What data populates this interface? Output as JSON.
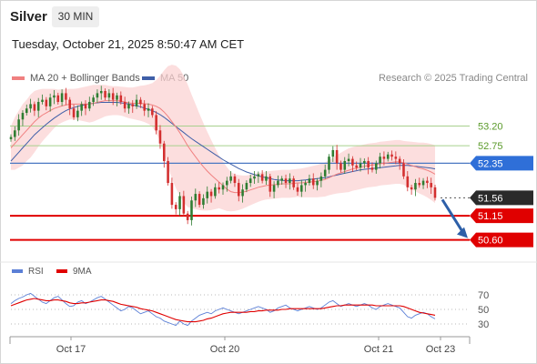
{
  "header": {
    "title": "Silver",
    "timeframe": "30 MIN",
    "timestamp": "Tuesday, October 21, 2025 8:50:47 AM CET"
  },
  "legend": {
    "ma20_label": "MA 20 + Bollinger Bands",
    "ma50_label": "MA 50",
    "research": "Research © 2025 Trading Central",
    "rsi_label": "RSI",
    "rsi_ma_label": "9MA"
  },
  "colors": {
    "bollinger_band": "#fbd3d3",
    "ma20": "#f08080",
    "ma50": "#3f5fa8",
    "candle_up": "#2e7d32",
    "candle_down": "#d32f2f",
    "target_line": "#e00000",
    "pivot_line": "#4a78c2",
    "resistance_line": "#a8d08d",
    "arrow": "#2d5fa8",
    "rsi": "#5b7fd6",
    "rsi_ma": "#e00000"
  },
  "chart_data": [
    {
      "type": "candlestick",
      "title": "Silver",
      "timeframe": "30 MIN",
      "x_labels": [
        "Oct 17",
        "Oct 20",
        "Oct 21",
        "Oct 23"
      ],
      "ylim": [
        50.3,
        54.0
      ],
      "overlays": [
        "MA 20 + Bollinger Bands",
        "MA 50"
      ],
      "levels": [
        {
          "value": 53.2,
          "label": "53.20",
          "kind": "resistance"
        },
        {
          "value": 52.75,
          "label": "52.75",
          "kind": "resistance"
        },
        {
          "value": 52.35,
          "label": "52.35",
          "kind": "pivot"
        },
        {
          "value": 51.56,
          "label": "51.56",
          "kind": "last_price"
        },
        {
          "value": 51.15,
          "label": "51.15",
          "kind": "target"
        },
        {
          "value": 50.6,
          "label": "50.60",
          "kind": "target"
        }
      ],
      "close_series": [
        52.95,
        53.1,
        53.35,
        53.5,
        53.6,
        53.7,
        53.55,
        53.75,
        53.8,
        53.65,
        53.85,
        53.9,
        53.75,
        53.95,
        53.8,
        53.6,
        53.4,
        53.55,
        53.7,
        53.6,
        53.75,
        53.85,
        53.95,
        54.0,
        53.85,
        53.95,
        53.8,
        53.9,
        53.75,
        53.6,
        53.7,
        53.65,
        53.8,
        53.7,
        53.55,
        53.6,
        53.45,
        53.1,
        52.8,
        52.4,
        51.9,
        51.4,
        51.3,
        51.6,
        51.2,
        51.05,
        51.5,
        51.65,
        51.4,
        51.55,
        51.7,
        51.6,
        51.8,
        51.75,
        51.85,
        51.95,
        52.05,
        51.9,
        51.6,
        51.75,
        51.9,
        52.0,
        52.05,
        52.1,
        51.95,
        52.05,
        51.7,
        51.85,
        51.95,
        52.0,
        51.9,
        52.0,
        51.8,
        51.7,
        51.85,
        51.9,
        52.0,
        51.85,
        51.95,
        52.05,
        52.2,
        52.5,
        52.65,
        52.35,
        52.2,
        52.4,
        52.45,
        52.3,
        52.25,
        52.35,
        52.4,
        52.25,
        52.2,
        52.35,
        52.5,
        52.45,
        52.55,
        52.5,
        52.45,
        52.35,
        52.05,
        51.8,
        51.75,
        51.9,
        51.85,
        51.95,
        51.9,
        51.8,
        51.56
      ],
      "ma20": [
        52.7,
        52.8,
        52.9,
        53.0,
        53.1,
        53.2,
        53.3,
        53.38,
        53.45,
        53.5,
        53.55,
        53.6,
        53.63,
        53.66,
        53.68,
        53.7,
        53.7,
        53.7,
        53.7,
        53.7,
        53.7,
        53.72,
        53.74,
        53.76,
        53.78,
        53.78,
        53.78,
        53.78,
        53.77,
        53.75,
        53.73,
        53.72,
        53.72,
        53.72,
        53.71,
        53.7,
        53.68,
        53.65,
        53.6,
        53.52,
        53.42,
        53.3,
        53.18,
        53.05,
        52.9,
        52.75,
        52.62,
        52.5,
        52.38,
        52.27,
        52.17,
        52.08,
        52.0,
        51.92,
        51.84,
        51.76,
        51.7,
        51.68,
        51.68,
        51.69,
        51.71,
        51.74,
        51.77,
        51.8,
        51.82,
        51.84,
        51.85,
        51.86,
        51.87,
        51.88,
        51.88,
        51.88,
        51.89,
        51.9,
        51.9,
        51.91,
        51.92,
        51.93,
        51.94,
        51.96,
        51.98,
        52.02,
        52.06,
        52.1,
        52.13,
        52.16,
        52.19,
        52.22,
        52.24,
        52.26,
        52.28,
        52.3,
        52.31,
        52.32,
        52.34,
        52.35,
        52.36,
        52.37,
        52.38,
        52.38,
        52.36,
        52.33,
        52.3,
        52.27,
        52.24,
        52.22,
        52.19,
        52.15,
        52.1
      ],
      "ma50": [
        52.4,
        52.5,
        52.6,
        52.7,
        52.8,
        52.9,
        53.0,
        53.08,
        53.16,
        53.24,
        53.31,
        53.38,
        53.44,
        53.5,
        53.55,
        53.59,
        53.62,
        53.65,
        53.67,
        53.69,
        53.71,
        53.72,
        53.73,
        53.74,
        53.74,
        53.74,
        53.74,
        53.74,
        53.73,
        53.72,
        53.7,
        53.68,
        53.66,
        53.64,
        53.61,
        53.58,
        53.55,
        53.51,
        53.46,
        53.4,
        53.33,
        53.26,
        53.19,
        53.12,
        53.05,
        52.98,
        52.91,
        52.85,
        52.79,
        52.73,
        52.67,
        52.61,
        52.55,
        52.49,
        52.43,
        52.38,
        52.33,
        52.28,
        52.23,
        52.19,
        52.15,
        52.12,
        52.09,
        52.06,
        52.04,
        52.02,
        52.0,
        51.98,
        51.97,
        51.96,
        51.95,
        51.95,
        51.95,
        51.95,
        51.96,
        51.97,
        51.98,
        51.99,
        52.0,
        52.01,
        52.02,
        52.04,
        52.06,
        52.08,
        52.1,
        52.12,
        52.14,
        52.16,
        52.18,
        52.2,
        52.21,
        52.22,
        52.23,
        52.24,
        52.25,
        52.26,
        52.27,
        52.28,
        52.29,
        52.3,
        52.3,
        52.3,
        52.29,
        52.28,
        52.27,
        52.26,
        52.25,
        52.24,
        52.22
      ],
      "bollinger_width": [
        0.5,
        0.6,
        0.65,
        0.7,
        0.7,
        0.72,
        0.7,
        0.65,
        0.6,
        0.55,
        0.5,
        0.45,
        0.4,
        0.38,
        0.36,
        0.35,
        0.35,
        0.36,
        0.38,
        0.4,
        0.42,
        0.42,
        0.4,
        0.38,
        0.36,
        0.34,
        0.33,
        0.33,
        0.33,
        0.34,
        0.35,
        0.36,
        0.38,
        0.4,
        0.42,
        0.45,
        0.5,
        0.6,
        0.75,
        0.95,
        1.15,
        1.3,
        1.4,
        1.45,
        1.45,
        1.4,
        1.3,
        1.2,
        1.1,
        1.0,
        0.9,
        0.8,
        0.7,
        0.6,
        0.55,
        0.5,
        0.45,
        0.42,
        0.4,
        0.38,
        0.36,
        0.35,
        0.34,
        0.33,
        0.32,
        0.32,
        0.32,
        0.32,
        0.32,
        0.32,
        0.32,
        0.32,
        0.32,
        0.32,
        0.33,
        0.34,
        0.35,
        0.36,
        0.37,
        0.38,
        0.39,
        0.4,
        0.42,
        0.44,
        0.46,
        0.48,
        0.5,
        0.5,
        0.5,
        0.5,
        0.5,
        0.5,
        0.5,
        0.5,
        0.5,
        0.5,
        0.5,
        0.5,
        0.5,
        0.5,
        0.5,
        0.52,
        0.54,
        0.56,
        0.58,
        0.6,
        0.62,
        0.64,
        0.66
      ]
    },
    {
      "type": "line",
      "title": "RSI",
      "series": [
        {
          "name": "RSI",
          "values": [
            58,
            62,
            65,
            67,
            70,
            72,
            68,
            64,
            60,
            58,
            62,
            66,
            68,
            63,
            58,
            54,
            55,
            60,
            62,
            58,
            60,
            63,
            66,
            68,
            64,
            60,
            56,
            52,
            48,
            50,
            54,
            52,
            48,
            44,
            46,
            48,
            44,
            40,
            38,
            34,
            32,
            30,
            28,
            34,
            30,
            28,
            34,
            38,
            42,
            44,
            46,
            44,
            48,
            50,
            52,
            50,
            48,
            46,
            44,
            46,
            48,
            50,
            52,
            54,
            52,
            50,
            46,
            48,
            52,
            54,
            56,
            52,
            50,
            48,
            50,
            52,
            54,
            52,
            50,
            52,
            56,
            60,
            62,
            58,
            54,
            56,
            58,
            56,
            54,
            56,
            58,
            56,
            52,
            50,
            54,
            56,
            58,
            56,
            54,
            52,
            46,
            40,
            38,
            42,
            44,
            46,
            44,
            40,
            37
          ]
        },
        {
          "name": "9MA",
          "values": [
            55,
            57,
            59,
            61,
            63,
            64,
            65,
            64,
            63,
            62,
            62,
            63,
            63,
            62,
            61,
            59,
            58,
            58,
            59,
            59,
            60,
            61,
            62,
            63,
            63,
            62,
            61,
            59,
            57,
            56,
            55,
            54,
            53,
            51,
            50,
            49,
            48,
            46,
            44,
            42,
            40,
            38,
            36,
            35,
            34,
            33,
            33,
            33,
            34,
            35,
            37,
            38,
            40,
            42,
            44,
            45,
            46,
            46,
            46,
            46,
            46,
            47,
            47,
            48,
            48,
            49,
            49,
            49,
            49,
            50,
            50,
            51,
            51,
            51,
            51,
            51,
            51,
            51,
            51,
            51,
            52,
            53,
            54,
            55,
            55,
            56,
            56,
            56,
            56,
            56,
            56,
            56,
            56,
            55,
            55,
            55,
            55,
            55,
            55,
            55,
            54,
            52,
            50,
            48,
            46,
            45,
            44,
            43,
            42
          ]
        }
      ],
      "ylim": [
        20,
        80
      ],
      "y_ticks": [
        70,
        50,
        30
      ]
    }
  ]
}
